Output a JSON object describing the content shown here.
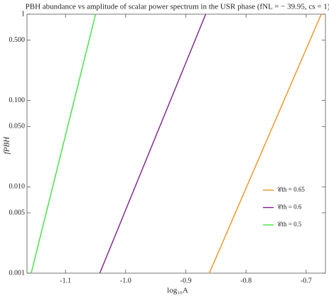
{
  "chart_data": {
    "type": "line",
    "title": "PBH abundance vs amplitude of scalar power spectrum in the USR phase (fNL = − 39.95, cs = 1)",
    "x_label": "log₁₀A",
    "y_label": "fPBH",
    "y_log": true,
    "legend": "lower right",
    "xlim": [
      -1.164,
      -0.668
    ],
    "ylim": [
      0.001,
      1
    ],
    "xticks": [
      -1.1,
      {
        "value": -1.0,
        "label": "-1.0"
      },
      -0.9,
      -0.8,
      -0.7
    ],
    "yticks": [
      {
        "value": 0.001,
        "label": "0.001"
      },
      {
        "value": 0.005,
        "label": "0.005"
      },
      {
        "value": 0.01,
        "label": "0.010"
      },
      {
        "value": 0.05,
        "label": "0.050"
      },
      {
        "value": 0.1,
        "label": "0.100"
      },
      {
        "value": 0.5,
        "label": "0.500"
      },
      1
    ],
    "series": [
      {
        "name": "𝒞th = 0.65",
        "color": "#f0901e",
        "x": [
          -0.861,
          -0.675
        ],
        "values": [
          0.001,
          1
        ]
      },
      {
        "name": "𝒞th = 0.6",
        "color": "#7d1e8c",
        "x": [
          -1.043,
          -0.867
        ],
        "values": [
          0.001,
          1
        ]
      },
      {
        "name": "𝒞th = 0.5",
        "color": "#3ee43e",
        "x": [
          -1.157,
          -1.05
        ],
        "values": [
          0.001,
          1
        ]
      }
    ]
  }
}
